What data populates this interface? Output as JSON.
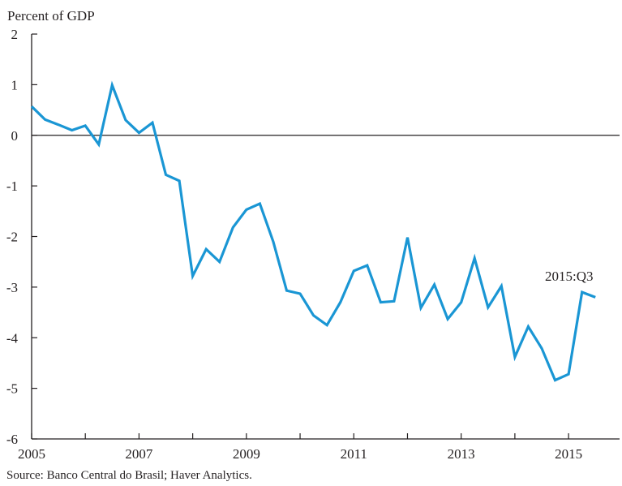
{
  "chart_data": {
    "type": "line",
    "ylabel": "Percent of GDP",
    "xlabel": "",
    "xlim": [
      2005.0,
      2015.95
    ],
    "ylim": [
      -6,
      2
    ],
    "x_ticks": [
      2005,
      2007,
      2009,
      2011,
      2013,
      2015
    ],
    "x_tick_labels": [
      "2005",
      "2007",
      "2009",
      "2011",
      "2013",
      "2015"
    ],
    "y_ticks": [
      2,
      1,
      0,
      -1,
      -2,
      -3,
      -4,
      -5,
      -6
    ],
    "y_tick_labels": [
      "2",
      "1",
      "0",
      "-1",
      "-2",
      "-3",
      "-4",
      "-5",
      "-6"
    ],
    "reference_line": 0,
    "grid": false,
    "series_color": "#1a96d4",
    "series": [
      {
        "x": [
          "2005:Q1",
          "2005:Q2",
          "2005:Q3",
          "2005:Q4",
          "2006:Q1",
          "2006:Q2",
          "2006:Q3",
          "2006:Q4",
          "2007:Q1",
          "2007:Q2",
          "2007:Q3",
          "2007:Q4",
          "2008:Q1",
          "2008:Q2",
          "2008:Q3",
          "2008:Q4",
          "2009:Q1",
          "2009:Q2",
          "2009:Q3",
          "2009:Q4",
          "2010:Q1",
          "2010:Q2",
          "2010:Q3",
          "2010:Q4",
          "2011:Q1",
          "2011:Q2",
          "2011:Q3",
          "2011:Q4",
          "2012:Q1",
          "2012:Q2",
          "2012:Q3",
          "2012:Q4",
          "2013:Q1",
          "2013:Q2",
          "2013:Q3",
          "2013:Q4",
          "2014:Q1",
          "2014:Q2",
          "2014:Q3",
          "2014:Q4",
          "2015:Q1",
          "2015:Q2",
          "2015:Q3"
        ],
        "values": [
          0.57,
          0.31,
          0.21,
          0.1,
          0.19,
          -0.18,
          0.99,
          0.3,
          0.05,
          0.25,
          -0.78,
          -0.9,
          -2.78,
          -2.25,
          -2.5,
          -1.82,
          -1.47,
          -1.35,
          -2.1,
          -3.07,
          -3.13,
          -3.56,
          -3.75,
          -3.3,
          -2.68,
          -2.57,
          -3.3,
          -3.28,
          -2.02,
          -3.41,
          -2.95,
          -3.63,
          -3.3,
          -2.43,
          -3.4,
          -2.98,
          -4.38,
          -3.78,
          -4.21,
          -4.84,
          -4.72,
          -3.1,
          -3.2
        ]
      }
    ],
    "annotations": [
      {
        "text": "2015:Q3"
      }
    ]
  },
  "source_note": "Source: Banco Central do Brasil; Haver Analytics."
}
